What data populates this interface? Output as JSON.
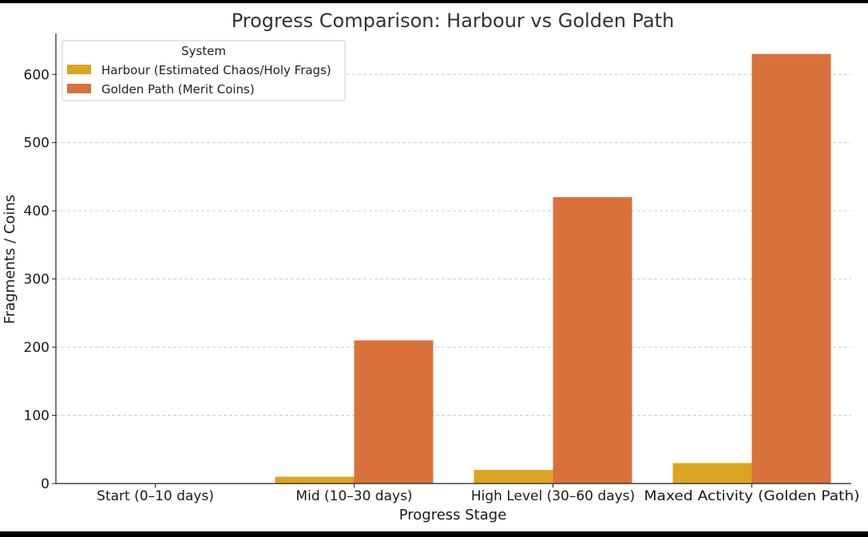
{
  "chart_data": {
    "type": "bar",
    "title": "Progress Comparison: Harbour vs Golden Path",
    "xlabel": "Progress Stage",
    "ylabel": "Fragments / Coins",
    "categories": [
      "Start (0–10 days)",
      "Mid (10–30 days)",
      "High Level (30–60 days)",
      "Maxed Activity (Golden Path)"
    ],
    "series": [
      {
        "name": "Harbour (Estimated Chaos/Holy Frags)",
        "values": [
          0,
          10,
          20,
          30
        ],
        "color": "#DAA520"
      },
      {
        "name": "Golden Path (Merit Coins)",
        "values": [
          0,
          210,
          420,
          630
        ],
        "color": "#D9713B"
      }
    ],
    "ylim": [
      0,
      660
    ],
    "yticks": [
      0,
      100,
      200,
      300,
      400,
      500,
      600
    ],
    "grid": "horizontal dashed",
    "legend": {
      "title": "System",
      "placement": "top-left"
    }
  }
}
